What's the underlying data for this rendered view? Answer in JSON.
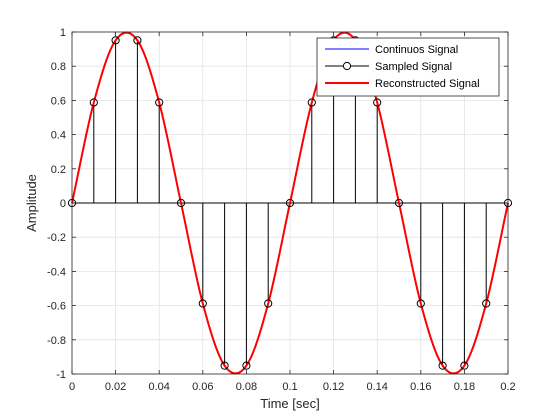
{
  "chart_data": {
    "type": "line",
    "xlabel": "Time [sec]",
    "ylabel": "Amplitude",
    "xlim": [
      0,
      0.2
    ],
    "ylim": [
      -1,
      1
    ],
    "xticks": [
      0,
      0.02,
      0.04,
      0.06,
      0.08,
      0.1,
      0.12,
      0.14,
      0.16,
      0.18,
      0.2
    ],
    "xtick_labels": [
      "0",
      "0.02",
      "0.04",
      "0.06",
      "0.08",
      "0.1",
      "0.12",
      "0.14",
      "0.16",
      "0.18",
      "0.2"
    ],
    "yticks": [
      -1,
      -0.8,
      -0.6,
      -0.4,
      -0.2,
      0,
      0.2,
      0.4,
      0.6,
      0.8,
      1
    ],
    "ytick_labels": [
      "-1",
      "-0.8",
      "-0.6",
      "-0.4",
      "-0.2",
      "0",
      "0.2",
      "0.4",
      "0.6",
      "0.8",
      "1"
    ],
    "grid": true,
    "legend_position": "top-right",
    "series": [
      {
        "name": "Continuos Signal",
        "kind": "line",
        "color": "#0000ff",
        "signal": {
          "function": "sin",
          "frequency_hz": 10,
          "amplitude": 1,
          "phase": 0
        }
      },
      {
        "name": "Sampled Signal",
        "kind": "stem",
        "color": "#000000",
        "x": [
          0,
          0.01,
          0.02,
          0.03,
          0.04,
          0.05,
          0.06,
          0.07,
          0.08,
          0.09,
          0.1,
          0.11,
          0.12,
          0.13,
          0.14,
          0.15,
          0.16,
          0.17,
          0.18,
          0.19,
          0.2
        ],
        "y": [
          0,
          0.5878,
          0.9511,
          0.9511,
          0.5878,
          0,
          -0.5878,
          -0.9511,
          -0.9511,
          -0.5878,
          0,
          0.5878,
          0.9511,
          0.9511,
          0.5878,
          0,
          -0.5878,
          -0.9511,
          -0.9511,
          -0.5878,
          0
        ]
      },
      {
        "name": "Reconstructed Signal",
        "kind": "line",
        "color": "#ff0000",
        "interpolation": "spline through samples"
      }
    ]
  }
}
